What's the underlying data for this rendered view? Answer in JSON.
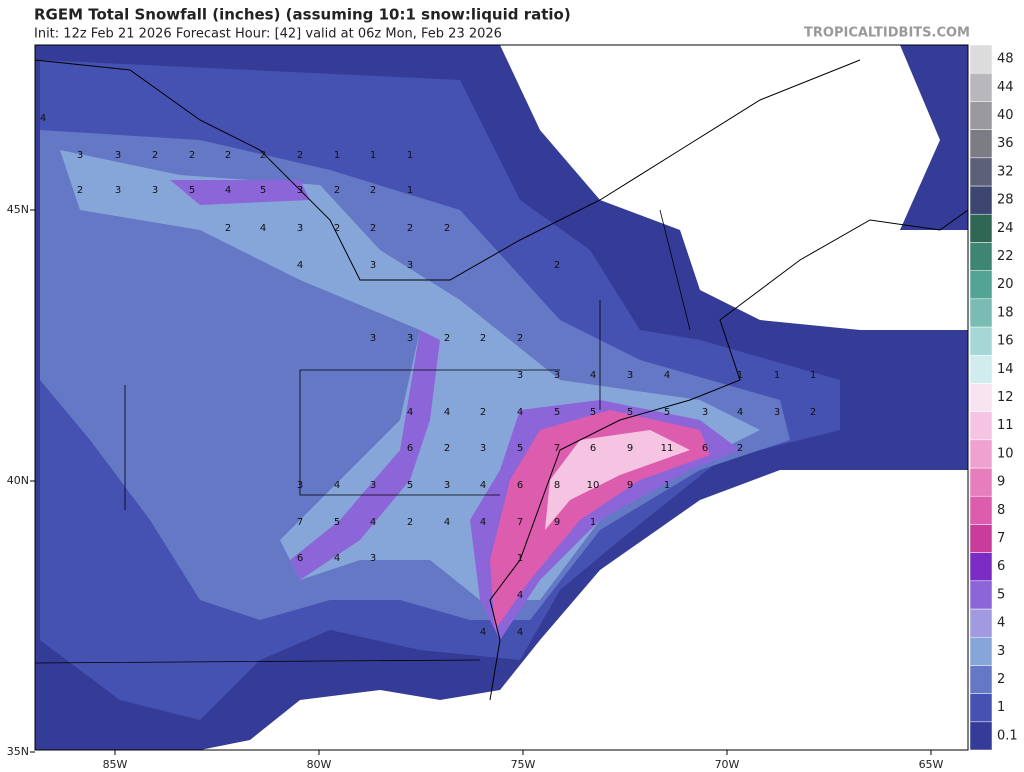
{
  "map": {
    "title": "RGEM Total Snowfall (inches) (assuming 10:1 snow:liquid ratio)",
    "subtitle": "Init: 12z Feb 21 2026   Forecast Hour: [42]   valid at 06z Mon, Feb 23 2026",
    "watermark": "TROPICALTIDBITS.COM",
    "lon_ticks": [
      {
        "value": -85,
        "label": "85W"
      },
      {
        "value": -80,
        "label": "80W"
      },
      {
        "value": -75,
        "label": "75W"
      },
      {
        "value": -70,
        "label": "70W"
      },
      {
        "value": -65,
        "label": "65W"
      }
    ],
    "lat_ticks": [
      {
        "value": 45,
        "label": "45N"
      },
      {
        "value": 40,
        "label": "40N"
      },
      {
        "value": 35,
        "label": "35N"
      }
    ],
    "colorbar": {
      "levels": [
        0.1,
        1,
        2,
        3,
        4,
        5,
        6,
        7,
        8,
        9,
        10,
        11,
        12,
        14,
        16,
        18,
        20,
        22,
        24,
        28,
        32,
        36,
        40,
        44,
        48
      ],
      "colors": [
        "#343c98",
        "#4652b2",
        "#6478c6",
        "#86a6da",
        "#a29ae0",
        "#8c66d8",
        "#7a2cc4",
        "#c83c9c",
        "#dc5cae",
        "#e67ebe",
        "#efa2d0",
        "#f5c4e2",
        "#f8e4f0",
        "#d0ecec",
        "#a6d6d6",
        "#78bcb4",
        "#54a496",
        "#3f8672",
        "#2f6654",
        "#3c4670",
        "#5c6078",
        "#7c7c84",
        "#9a9a9e",
        "#b8b8bc",
        "#dcdcdc"
      ]
    },
    "labels": [
      "4",
      "3",
      "3",
      "2",
      "2",
      "2",
      "2",
      "2",
      "1",
      "1",
      "1",
      "2",
      "3",
      "3",
      "5",
      "4",
      "5",
      "3",
      "2",
      "2",
      "1",
      "2",
      "4",
      "3",
      "2",
      "2",
      "2",
      "2",
      "4",
      "3",
      "3",
      "2",
      "3",
      "3",
      "2",
      "2",
      "2",
      "3",
      "3",
      "4",
      "3",
      "4",
      "1",
      "1",
      "1",
      "4",
      "4",
      "2",
      "4",
      "5",
      "5",
      "5",
      "5",
      "3",
      "4",
      "3",
      "2",
      "6",
      "2",
      "3",
      "5",
      "7",
      "6",
      "9",
      "11",
      "6",
      "2",
      "3",
      "4",
      "3",
      "5",
      "3",
      "4",
      "6",
      "8",
      "10",
      "9",
      "1",
      "7",
      "5",
      "4",
      "2",
      "4",
      "4",
      "7",
      "9",
      "1",
      "6",
      "4",
      "3",
      "1",
      "4",
      "4",
      "4"
    ]
  }
}
